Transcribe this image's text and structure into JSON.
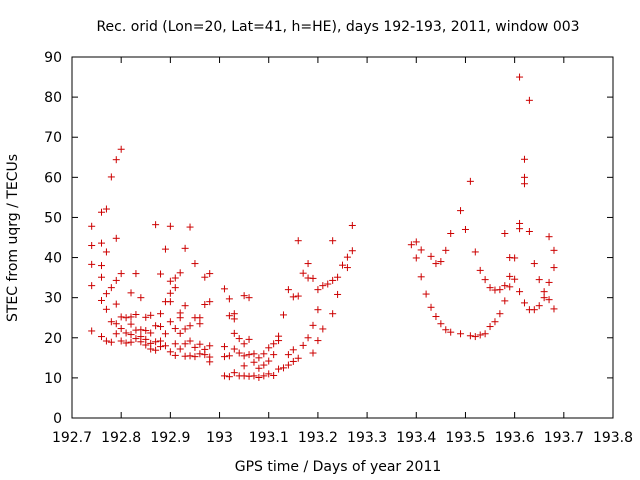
{
  "chart_data": {
    "type": "scatter",
    "title": "Rec. orid (Lon=20, Lat=41, h=HE), days 192-193, 2011, window 003",
    "xlabel": "GPS time / Days of year 2011",
    "ylabel": "STEC from uqrg / TECUs",
    "xlim": [
      192.7,
      193.8
    ],
    "ylim": [
      0,
      90
    ],
    "xticks": [
      192.7,
      192.8,
      192.9,
      193,
      193.1,
      193.2,
      193.3,
      193.4,
      193.5,
      193.6,
      193.7,
      193.8
    ],
    "xtick_labels": [
      "192.7",
      "192.8",
      "192.9",
      "193",
      "193.1",
      "193.2",
      "193.3",
      "193.4",
      "193.5",
      "193.6",
      "193.7",
      "193.8"
    ],
    "yticks": [
      0,
      10,
      20,
      30,
      40,
      50,
      60,
      70,
      80,
      90
    ],
    "ytick_labels": [
      "0",
      "10",
      "20",
      "30",
      "40",
      "50",
      "60",
      "70",
      "80",
      "90"
    ],
    "marker": "plus",
    "color": "#cc0000",
    "grid": false,
    "points": [
      [
        192.74,
        47.8
      ],
      [
        192.74,
        43.0
      ],
      [
        192.74,
        38.3
      ],
      [
        192.74,
        33.0
      ],
      [
        192.74,
        21.7
      ],
      [
        192.76,
        51.3
      ],
      [
        192.76,
        43.6
      ],
      [
        192.76,
        38.0
      ],
      [
        192.76,
        35.1
      ],
      [
        192.76,
        29.3
      ],
      [
        192.76,
        20.3
      ],
      [
        192.77,
        52.1
      ],
      [
        192.77,
        41.4
      ],
      [
        192.77,
        31.0
      ],
      [
        192.77,
        27.1
      ],
      [
        192.77,
        19.2
      ],
      [
        192.78,
        60.1
      ],
      [
        192.78,
        32.5
      ],
      [
        192.78,
        24.0
      ],
      [
        192.78,
        18.9
      ],
      [
        192.79,
        64.4
      ],
      [
        192.79,
        44.8
      ],
      [
        192.79,
        34.3
      ],
      [
        192.79,
        28.4
      ],
      [
        192.79,
        23.5
      ],
      [
        192.79,
        21.0
      ],
      [
        192.8,
        67.0
      ],
      [
        192.8,
        36.0
      ],
      [
        192.8,
        25.2
      ],
      [
        192.8,
        22.3
      ],
      [
        192.8,
        19.2
      ],
      [
        192.81,
        25.0
      ],
      [
        192.81,
        21.2
      ],
      [
        192.81,
        18.7
      ],
      [
        192.82,
        31.2
      ],
      [
        192.82,
        25.2
      ],
      [
        192.82,
        23.4
      ],
      [
        192.82,
        20.8
      ],
      [
        192.82,
        18.9
      ],
      [
        192.83,
        36.0
      ],
      [
        192.83,
        25.8
      ],
      [
        192.83,
        21.9
      ],
      [
        192.83,
        19.8
      ],
      [
        192.84,
        30.0
      ],
      [
        192.84,
        22.0
      ],
      [
        192.84,
        20.3
      ],
      [
        192.84,
        19.0
      ],
      [
        192.85,
        25.1
      ],
      [
        192.85,
        21.8
      ],
      [
        192.85,
        19.6
      ],
      [
        192.85,
        18.2
      ],
      [
        192.86,
        25.6
      ],
      [
        192.86,
        21.2
      ],
      [
        192.86,
        18.6
      ],
      [
        192.86,
        17.2
      ],
      [
        192.87,
        48.2
      ],
      [
        192.87,
        23.0
      ],
      [
        192.87,
        19.0
      ],
      [
        192.87,
        16.9
      ],
      [
        192.88,
        35.9
      ],
      [
        192.88,
        26.0
      ],
      [
        192.88,
        22.8
      ],
      [
        192.88,
        19.2
      ],
      [
        192.88,
        17.8
      ],
      [
        192.89,
        42.1
      ],
      [
        192.89,
        29.0
      ],
      [
        192.89,
        21.0
      ],
      [
        192.89,
        18.0
      ],
      [
        192.9,
        47.8
      ],
      [
        192.9,
        34.1
      ],
      [
        192.9,
        31.1
      ],
      [
        192.9,
        29.0
      ],
      [
        192.9,
        24.0
      ],
      [
        192.9,
        16.5
      ],
      [
        192.91,
        34.9
      ],
      [
        192.91,
        32.5
      ],
      [
        192.91,
        22.3
      ],
      [
        192.91,
        18.5
      ],
      [
        192.91,
        15.6
      ],
      [
        192.92,
        36.2
      ],
      [
        192.92,
        26.2
      ],
      [
        192.92,
        25.0
      ],
      [
        192.92,
        21.1
      ],
      [
        192.92,
        17.2
      ],
      [
        192.93,
        42.3
      ],
      [
        192.93,
        28.0
      ],
      [
        192.93,
        22.2
      ],
      [
        192.93,
        18.5
      ],
      [
        192.93,
        15.4
      ],
      [
        192.94,
        47.6
      ],
      [
        192.94,
        23.0
      ],
      [
        192.94,
        19.2
      ],
      [
        192.94,
        15.5
      ],
      [
        192.95,
        38.5
      ],
      [
        192.95,
        25.0
      ],
      [
        192.95,
        17.6
      ],
      [
        192.95,
        15.3
      ],
      [
        192.96,
        25.0
      ],
      [
        192.96,
        23.5
      ],
      [
        192.96,
        18.4
      ],
      [
        192.96,
        16.0
      ],
      [
        192.97,
        35.1
      ],
      [
        192.97,
        28.3
      ],
      [
        192.97,
        17.1
      ],
      [
        192.97,
        15.8
      ],
      [
        192.98,
        36.0
      ],
      [
        192.98,
        29.0
      ],
      [
        192.98,
        18.0
      ],
      [
        192.98,
        15.2
      ],
      [
        192.98,
        14.0
      ],
      [
        193.01,
        32.2
      ],
      [
        193.01,
        17.8
      ],
      [
        193.01,
        15.3
      ],
      [
        193.01,
        10.5
      ],
      [
        193.02,
        29.7
      ],
      [
        193.02,
        25.5
      ],
      [
        193.02,
        15.5
      ],
      [
        193.02,
        10.3
      ],
      [
        193.03,
        26.0
      ],
      [
        193.03,
        24.7
      ],
      [
        193.03,
        21.1
      ],
      [
        193.03,
        17.2
      ],
      [
        193.03,
        11.3
      ],
      [
        193.04,
        19.8
      ],
      [
        193.04,
        16.2
      ],
      [
        193.04,
        10.5
      ],
      [
        193.05,
        30.5
      ],
      [
        193.05,
        18.5
      ],
      [
        193.05,
        15.5
      ],
      [
        193.05,
        13.0
      ],
      [
        193.05,
        10.5
      ],
      [
        193.06,
        30.0
      ],
      [
        193.06,
        19.6
      ],
      [
        193.06,
        15.8
      ],
      [
        193.06,
        10.4
      ],
      [
        193.07,
        16.0
      ],
      [
        193.07,
        13.9
      ],
      [
        193.07,
        10.5
      ],
      [
        193.08,
        15.0
      ],
      [
        193.08,
        12.4
      ],
      [
        193.08,
        10.1
      ],
      [
        193.09,
        16.0
      ],
      [
        193.09,
        13.2
      ],
      [
        193.09,
        10.5
      ],
      [
        193.1,
        17.5
      ],
      [
        193.1,
        14.2
      ],
      [
        193.1,
        11.0
      ],
      [
        193.11,
        18.5
      ],
      [
        193.11,
        15.8
      ],
      [
        193.11,
        10.6
      ],
      [
        193.12,
        20.4
      ],
      [
        193.12,
        19.3
      ],
      [
        193.12,
        12.2
      ],
      [
        193.13,
        25.7
      ],
      [
        193.13,
        12.5
      ],
      [
        193.14,
        32.0
      ],
      [
        193.14,
        15.8
      ],
      [
        193.14,
        13.2
      ],
      [
        193.15,
        30.2
      ],
      [
        193.15,
        17.0
      ],
      [
        193.15,
        14.1
      ],
      [
        193.16,
        44.2
      ],
      [
        193.16,
        30.4
      ],
      [
        193.16,
        14.9
      ],
      [
        193.17,
        36.1
      ],
      [
        193.17,
        18.1
      ],
      [
        193.18,
        38.5
      ],
      [
        193.18,
        34.9
      ],
      [
        193.18,
        20.0
      ],
      [
        193.19,
        34.8
      ],
      [
        193.19,
        23.1
      ],
      [
        193.19,
        16.2
      ],
      [
        193.2,
        32.0
      ],
      [
        193.2,
        27.0
      ],
      [
        193.2,
        19.3
      ],
      [
        193.21,
        33.0
      ],
      [
        193.21,
        22.2
      ],
      [
        193.22,
        33.4
      ],
      [
        193.23,
        44.2
      ],
      [
        193.23,
        34.3
      ],
      [
        193.23,
        26.0
      ],
      [
        193.24,
        35.1
      ],
      [
        193.24,
        30.8
      ],
      [
        193.25,
        38.1
      ],
      [
        193.26,
        37.5
      ],
      [
        193.26,
        40.1
      ],
      [
        193.27,
        48.0
      ],
      [
        193.27,
        41.7
      ],
      [
        193.39,
        43.2
      ],
      [
        193.4,
        43.9
      ],
      [
        193.4,
        39.9
      ],
      [
        193.41,
        41.9
      ],
      [
        193.41,
        35.2
      ],
      [
        193.42,
        30.9
      ],
      [
        193.43,
        40.3
      ],
      [
        193.43,
        27.6
      ],
      [
        193.44,
        38.5
      ],
      [
        193.44,
        25.3
      ],
      [
        193.45,
        39.0
      ],
      [
        193.45,
        23.5
      ],
      [
        193.46,
        41.8
      ],
      [
        193.46,
        22.0
      ],
      [
        193.47,
        46.0
      ],
      [
        193.47,
        21.4
      ],
      [
        193.49,
        51.7
      ],
      [
        193.49,
        21.0
      ],
      [
        193.5,
        47.0
      ],
      [
        193.51,
        59.0
      ],
      [
        193.51,
        20.5
      ],
      [
        193.52,
        41.4
      ],
      [
        193.52,
        20.3
      ],
      [
        193.53,
        36.8
      ],
      [
        193.53,
        20.7
      ],
      [
        193.54,
        34.5
      ],
      [
        193.54,
        21.0
      ],
      [
        193.55,
        32.5
      ],
      [
        193.55,
        22.8
      ],
      [
        193.56,
        31.9
      ],
      [
        193.56,
        24.0
      ],
      [
        193.57,
        26.0
      ],
      [
        193.57,
        32.0
      ],
      [
        193.58,
        46.0
      ],
      [
        193.58,
        33.0
      ],
      [
        193.58,
        29.2
      ],
      [
        193.59,
        40.0
      ],
      [
        193.59,
        35.3
      ],
      [
        193.59,
        32.7
      ],
      [
        193.6,
        39.9
      ],
      [
        193.6,
        34.6
      ],
      [
        193.61,
        85.0
      ],
      [
        193.61,
        48.5
      ],
      [
        193.61,
        47.2
      ],
      [
        193.61,
        31.5
      ],
      [
        193.62,
        64.5
      ],
      [
        193.62,
        60.0
      ],
      [
        193.62,
        58.4
      ],
      [
        193.62,
        28.7
      ],
      [
        193.63,
        79.2
      ],
      [
        193.63,
        46.5
      ],
      [
        193.63,
        27.0
      ],
      [
        193.64,
        38.5
      ],
      [
        193.64,
        27.0
      ],
      [
        193.65,
        34.5
      ],
      [
        193.65,
        28.0
      ],
      [
        193.66,
        31.5
      ],
      [
        193.66,
        30.0
      ],
      [
        193.67,
        45.2
      ],
      [
        193.67,
        33.8
      ],
      [
        193.67,
        29.5
      ],
      [
        193.68,
        41.8
      ],
      [
        193.68,
        37.5
      ],
      [
        193.68,
        27.2
      ]
    ]
  }
}
